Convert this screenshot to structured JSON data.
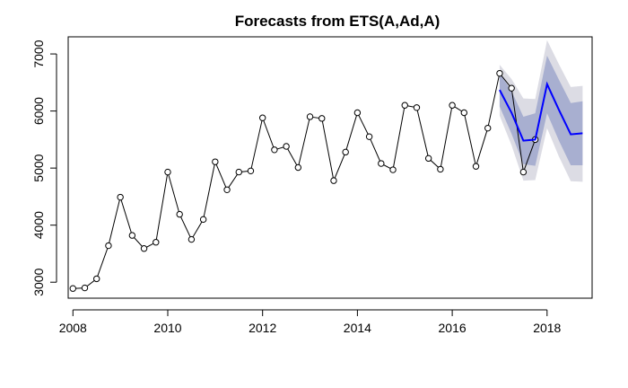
{
  "chart_data": {
    "type": "line",
    "title": "Forecasts from ETS(A,Ad,A)",
    "xlabel": "",
    "ylabel": "",
    "xlim": [
      2007.9,
      2018.95
    ],
    "ylim": [
      2720,
      7300
    ],
    "x_ticks": [
      2008,
      2010,
      2012,
      2014,
      2016,
      2018
    ],
    "x_tick_labels": [
      "2008",
      "2010",
      "2012",
      "2014",
      "2016",
      "2018"
    ],
    "y_ticks": [
      3000,
      4000,
      5000,
      6000,
      7000
    ],
    "y_tick_labels": [
      "3000",
      "4000",
      "5000",
      "6000",
      "7000"
    ],
    "grid": false,
    "legend": "none",
    "colors": {
      "observed": "#000000",
      "forecast": "#0000ff",
      "band_95": "#dcdce4",
      "band_80": "#a8afd0"
    },
    "series": [
      {
        "x": [
          2008.0,
          2008.25,
          2008.5,
          2008.75,
          2009.0,
          2009.25,
          2009.5,
          2009.75,
          2010.0,
          2010.25,
          2010.5,
          2010.75,
          2011.0,
          2011.25,
          2011.5,
          2011.75,
          2012.0,
          2012.25,
          2012.5,
          2012.75,
          2013.0,
          2013.25,
          2013.5,
          2013.75,
          2014.0,
          2014.25,
          2014.5,
          2014.75,
          2015.0,
          2015.25,
          2015.5,
          2015.75,
          2016.0,
          2016.25,
          2016.5,
          2016.75,
          2017.0,
          2017.25,
          2017.5,
          2017.75
        ],
        "values": [
          2890,
          2900,
          3060,
          3640,
          4490,
          3820,
          3590,
          3700,
          4930,
          4190,
          3750,
          4100,
          5110,
          4620,
          4930,
          4950,
          5880,
          5320,
          5380,
          5010,
          5900,
          5870,
          4780,
          5280,
          5970,
          5550,
          5080,
          4970,
          6100,
          6060,
          5170,
          4980,
          6100,
          5970,
          5030,
          5700,
          6660,
          6400,
          4930,
          5500
        ]
      },
      {
        "x": [
          2017.0,
          2017.25,
          2017.5,
          2017.75,
          2018.0,
          2018.25,
          2018.5,
          2018.75
        ],
        "values": [
          6370,
          5970,
          5480,
          5500,
          6470,
          6020,
          5590,
          5610
        ],
        "lo80": [
          6080,
          5600,
          5070,
          5040,
          5960,
          5480,
          5050,
          5050
        ],
        "hi80": [
          6670,
          6350,
          5900,
          5960,
          6970,
          6550,
          6140,
          6170
        ],
        "lo95": [
          5920,
          5400,
          4780,
          4790,
          5700,
          5200,
          4770,
          4760
        ],
        "hi95": [
          6810,
          6560,
          6220,
          6210,
          7240,
          6820,
          6420,
          6440
        ]
      }
    ]
  }
}
